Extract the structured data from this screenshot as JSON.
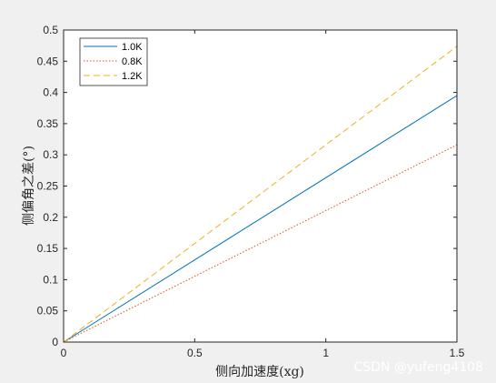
{
  "chart_data": {
    "type": "line",
    "xlabel": "侧向加速度(xg)",
    "ylabel": "侧偏角之差(°)",
    "xlim": [
      0,
      1.5
    ],
    "ylim": [
      0,
      0.5
    ],
    "xticks": [
      "0",
      "0.5",
      "1",
      "1.5"
    ],
    "yticks": [
      "0",
      "0.05",
      "0.1",
      "0.15",
      "0.2",
      "0.25",
      "0.3",
      "0.35",
      "0.4",
      "0.45",
      "0.5"
    ],
    "grid": false,
    "legend_position": "top-left",
    "series": [
      {
        "name": "1.0K",
        "x": [
          0,
          1.5
        ],
        "y": [
          0,
          0.395
        ],
        "color": "#0072BD",
        "style": "solid"
      },
      {
        "name": "0.8K",
        "x": [
          0,
          1.5
        ],
        "y": [
          0,
          0.316
        ],
        "color": "#D95319",
        "style": "dotted"
      },
      {
        "name": "1.2K",
        "x": [
          0,
          1.5
        ],
        "y": [
          0,
          0.474
        ],
        "color": "#EDB120",
        "style": "dashed"
      }
    ]
  },
  "watermark": "CSDN @yufeng4108"
}
